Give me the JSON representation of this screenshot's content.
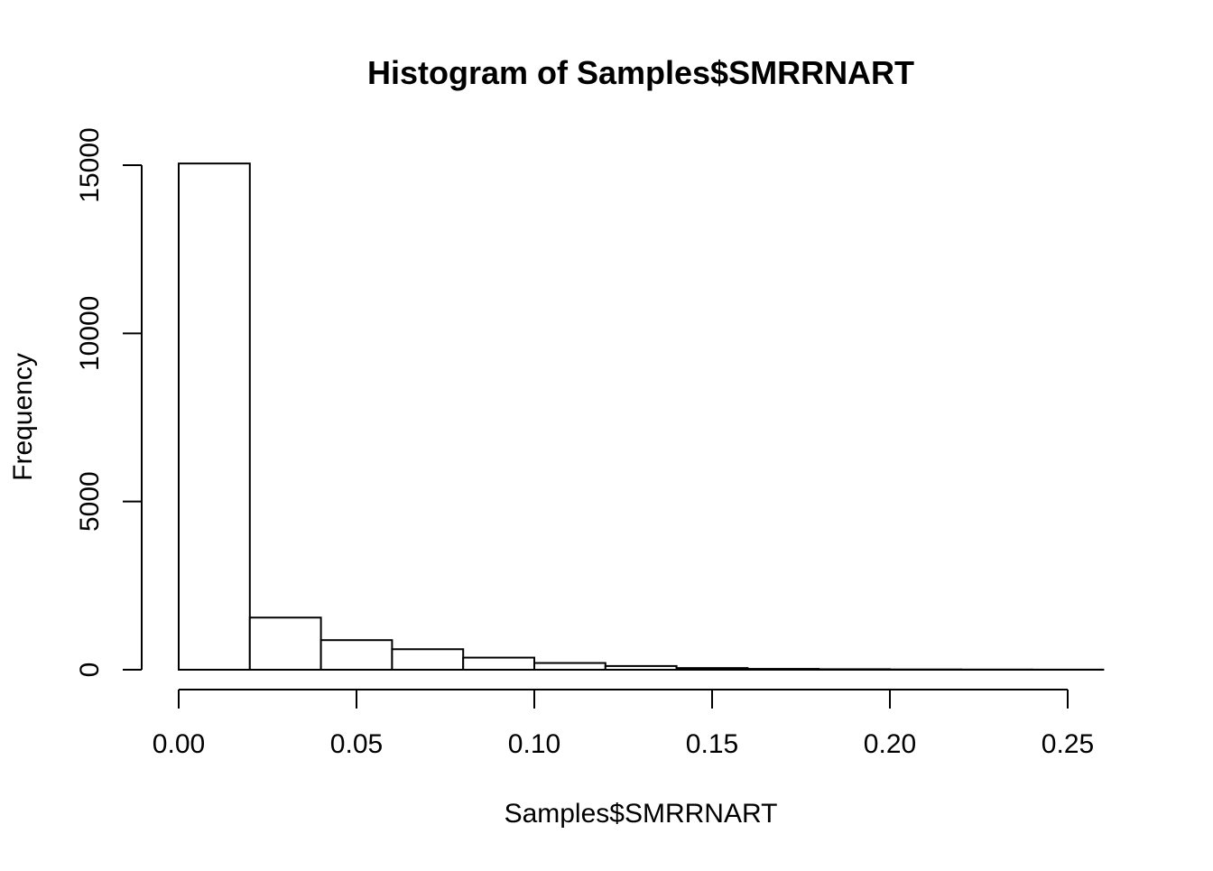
{
  "chart_data": {
    "type": "bar",
    "title": "Histogram of Samples$SMRRNART",
    "xlabel": "Samples$SMRRNART",
    "ylabel": "Frequency",
    "bin_edges": [
      0.0,
      0.02,
      0.04,
      0.06,
      0.08,
      0.1,
      0.12,
      0.14,
      0.16,
      0.18,
      0.2,
      0.22,
      0.24,
      0.26
    ],
    "values": [
      15050,
      1550,
      880,
      610,
      360,
      200,
      110,
      50,
      25,
      15,
      8,
      5,
      3
    ],
    "xlim": [
      0.0,
      0.26
    ],
    "ylim": [
      0,
      15000
    ],
    "x_ticks": [
      0.0,
      0.05,
      0.1,
      0.15,
      0.2,
      0.25
    ],
    "x_tick_labels": [
      "0.00",
      "0.05",
      "0.10",
      "0.15",
      "0.20",
      "0.25"
    ],
    "y_ticks": [
      0,
      5000,
      10000,
      15000
    ],
    "y_tick_labels": [
      "0",
      "5000",
      "10000",
      "15000"
    ],
    "grid": false,
    "legend": false
  }
}
